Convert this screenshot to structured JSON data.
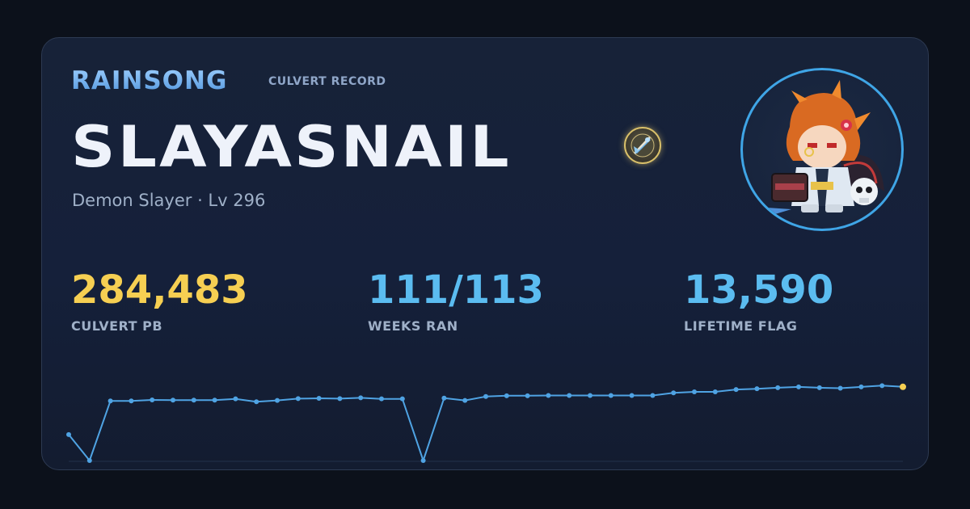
{
  "header": {
    "brand": "RAINSONG",
    "record_label": "CULVERT RECORD"
  },
  "player": {
    "name": "SLAYASNAIL",
    "subline": "Demon Slayer · Lv 296",
    "badge_icon": "guild-emblem-icon",
    "avatar_icon": "character-avatar-icon"
  },
  "stats": {
    "pb_value": "284,483",
    "pb_label": "CULVERT PB",
    "weeks_value": "111/113",
    "weeks_label": "WEEKS RAN",
    "flag_value": "13,590",
    "flag_label": "LIFETIME FLAG"
  },
  "colors": {
    "accent_gold": "#f6cf52",
    "accent_blue": "#5bbcf0",
    "line": "#4fa3e3",
    "last_point": "#f6cf52"
  },
  "chart_data": {
    "type": "line",
    "title": "",
    "xlabel": "",
    "ylabel": "",
    "ylim": [
      0,
      290000
    ],
    "series": [
      {
        "values": [
          100000,
          0,
          230000,
          230000,
          234000,
          233000,
          233000,
          233000,
          238000,
          227000,
          232000,
          239000,
          240000,
          239000,
          242000,
          238000,
          238000,
          0,
          241000,
          232000,
          247000,
          250000,
          250000,
          251000,
          251000,
          251000,
          251000,
          251000,
          251000,
          261000,
          265000,
          265000,
          274000,
          277000,
          281000,
          284000,
          281000,
          279000,
          284000,
          289000,
          284483
        ]
      }
    ]
  }
}
